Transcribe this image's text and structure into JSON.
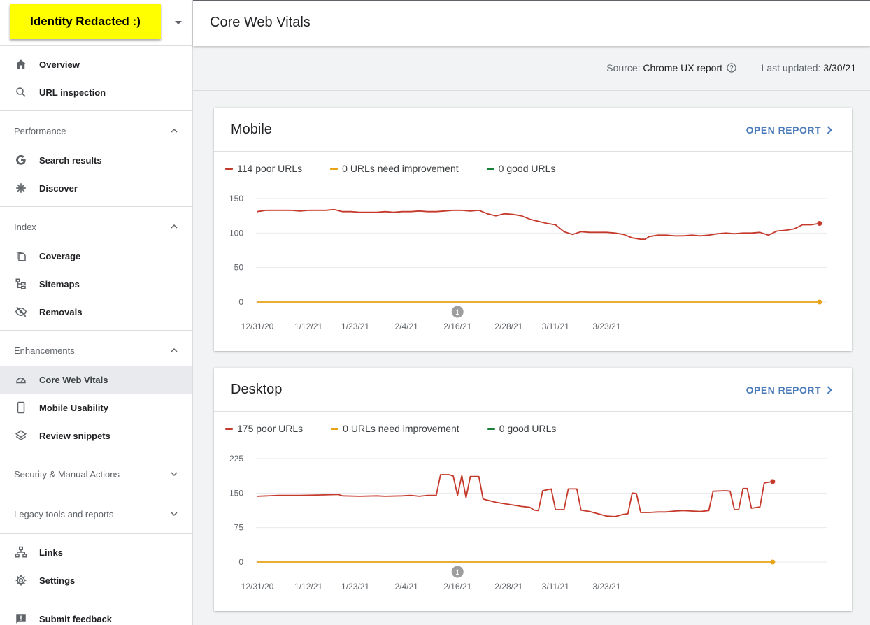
{
  "property": {
    "name": "Identity Redacted :)"
  },
  "nav": {
    "overview": "Overview",
    "url_inspection": "URL inspection",
    "performance": {
      "heading": "Performance",
      "search_results": "Search results",
      "discover": "Discover"
    },
    "index": {
      "heading": "Index",
      "coverage": "Coverage",
      "sitemaps": "Sitemaps",
      "removals": "Removals"
    },
    "enhancements": {
      "heading": "Enhancements",
      "core_web_vitals": "Core Web Vitals",
      "mobile_usability": "Mobile Usability",
      "review_snippets": "Review snippets"
    },
    "security": "Security & Manual Actions",
    "legacy": "Legacy tools and reports",
    "links": "Links",
    "settings": "Settings",
    "submit_feedback": "Submit feedback"
  },
  "header": {
    "title": "Core Web Vitals"
  },
  "source_bar": {
    "source_label": "Source:",
    "source_value": "Chrome UX report",
    "updated_label": "Last updated:",
    "updated_value": "3/30/21"
  },
  "colors": {
    "poor": "#c5392b",
    "needs_improvement": "#e8a317",
    "good": "#188038",
    "link": "#4a7ab8"
  },
  "cards": {
    "mobile": {
      "title": "Mobile",
      "open_report": "OPEN REPORT",
      "legend": {
        "poor": "114 poor URLs",
        "needs_improvement": "0 URLs need improvement",
        "good": "0 good URLs"
      },
      "annotation": "1"
    },
    "desktop": {
      "title": "Desktop",
      "open_report": "OPEN REPORT",
      "legend": {
        "poor": "175 poor URLs",
        "needs_improvement": "0 URLs need improvement",
        "good": "0 good URLs"
      },
      "annotation": "1"
    }
  },
  "chart_data": [
    {
      "type": "line",
      "name": "Mobile",
      "x_tick_labels": [
        "12/31/20",
        "1/12/21",
        "1/23/21",
        "2/4/21",
        "2/16/21",
        "2/28/21",
        "3/11/21",
        "3/23/21"
      ],
      "x_tick_days": [
        0,
        12,
        23,
        35,
        47,
        59,
        70,
        82
      ],
      "ylim": [
        0,
        150
      ],
      "y_ticks": [
        0,
        50,
        100,
        150
      ],
      "annotation_day": 47,
      "series": [
        {
          "name": "114 poor URLs",
          "color": "#c5392b",
          "points": [
            [
              0,
              131
            ],
            [
              2,
              133
            ],
            [
              4,
              133
            ],
            [
              6,
              133
            ],
            [
              8,
              133
            ],
            [
              10,
              132
            ],
            [
              12,
              133
            ],
            [
              14,
              133
            ],
            [
              16,
              133
            ],
            [
              18,
              134
            ],
            [
              20,
              131
            ],
            [
              22,
              131
            ],
            [
              24,
              130
            ],
            [
              26,
              130
            ],
            [
              28,
              130
            ],
            [
              30,
              131
            ],
            [
              32,
              130
            ],
            [
              34,
              131
            ],
            [
              36,
              131
            ],
            [
              38,
              132
            ],
            [
              40,
              131
            ],
            [
              42,
              131
            ],
            [
              44,
              132
            ],
            [
              46,
              133
            ],
            [
              48,
              133
            ],
            [
              50,
              132
            ],
            [
              52,
              133
            ],
            [
              54,
              128
            ],
            [
              56,
              125
            ],
            [
              58,
              128
            ],
            [
              60,
              127
            ],
            [
              62,
              125
            ],
            [
              64,
              120
            ],
            [
              66,
              117
            ],
            [
              68,
              114
            ],
            [
              70,
              112
            ],
            [
              72,
              102
            ],
            [
              74,
              98
            ],
            [
              76,
              102
            ],
            [
              78,
              101
            ],
            [
              80,
              101
            ],
            [
              82,
              101
            ],
            [
              84,
              100
            ],
            [
              86,
              98
            ],
            [
              88,
              93
            ],
            [
              90,
              91
            ],
            [
              91,
              91
            ],
            [
              92,
              95
            ],
            [
              94,
              97
            ],
            [
              96,
              97
            ],
            [
              98,
              96
            ],
            [
              100,
              96
            ],
            [
              102,
              97
            ],
            [
              104,
              96
            ],
            [
              106,
              97
            ],
            [
              108,
              99
            ],
            [
              110,
              100
            ],
            [
              112,
              99
            ],
            [
              114,
              100
            ],
            [
              116,
              100
            ],
            [
              118,
              101
            ],
            [
              120,
              97
            ],
            [
              122,
              103
            ],
            [
              124,
              104
            ],
            [
              126,
              106
            ],
            [
              128,
              112
            ],
            [
              130,
              112
            ],
            [
              132,
              114
            ]
          ]
        },
        {
          "name": "0 URLs need improvement",
          "color": "#e8a317",
          "points": [
            [
              0,
              0
            ],
            [
              132,
              0
            ]
          ]
        },
        {
          "name": "0 good URLs",
          "color": "#188038",
          "points": []
        }
      ]
    },
    {
      "type": "line",
      "name": "Desktop",
      "x_tick_labels": [
        "12/31/20",
        "1/12/21",
        "1/23/21",
        "2/4/21",
        "2/16/21",
        "2/28/21",
        "3/11/21",
        "3/23/21"
      ],
      "x_tick_days": [
        0,
        12,
        23,
        35,
        47,
        59,
        70,
        82
      ],
      "ylim": [
        0,
        225
      ],
      "y_ticks": [
        0,
        75,
        150,
        225
      ],
      "annotation_day": 47,
      "series": [
        {
          "name": "175 poor URLs",
          "color": "#c5392b",
          "points": [
            [
              0,
              143
            ],
            [
              5,
              145
            ],
            [
              10,
              145
            ],
            [
              15,
              146
            ],
            [
              19,
              147
            ],
            [
              20,
              144
            ],
            [
              24,
              143
            ],
            [
              28,
              144
            ],
            [
              30,
              143
            ],
            [
              34,
              144
            ],
            [
              36,
              145
            ],
            [
              38,
              143
            ],
            [
              40,
              145
            ],
            [
              42,
              145
            ],
            [
              43,
              190
            ],
            [
              45,
              190
            ],
            [
              46,
              187
            ],
            [
              47,
              145
            ],
            [
              48,
              188
            ],
            [
              49,
              140
            ],
            [
              50,
              186
            ],
            [
              52,
              186
            ],
            [
              53,
              137
            ],
            [
              56,
              130
            ],
            [
              58,
              127
            ],
            [
              60,
              124
            ],
            [
              62,
              121
            ],
            [
              64,
              119
            ],
            [
              65,
              113
            ],
            [
              66,
              112
            ],
            [
              67,
              155
            ],
            [
              69,
              159
            ],
            [
              70,
              114
            ],
            [
              72,
              114
            ],
            [
              73,
              159
            ],
            [
              75,
              159
            ],
            [
              76,
              113
            ],
            [
              78,
              110
            ],
            [
              80,
              105
            ],
            [
              82,
              100
            ],
            [
              84,
              99
            ],
            [
              86,
              104
            ],
            [
              87,
              105
            ],
            [
              88,
              150
            ],
            [
              89,
              149
            ],
            [
              90,
              108
            ],
            [
              92,
              108
            ],
            [
              94,
              109
            ],
            [
              96,
              109
            ],
            [
              98,
              111
            ],
            [
              100,
              112
            ],
            [
              102,
              111
            ],
            [
              104,
              110
            ],
            [
              106,
              112
            ],
            [
              107,
              154
            ],
            [
              110,
              155
            ],
            [
              111,
              154
            ],
            [
              112,
              114
            ],
            [
              113,
              114
            ],
            [
              114,
              160
            ],
            [
              115,
              160
            ],
            [
              116,
              117
            ],
            [
              118,
              120
            ],
            [
              119,
              172
            ],
            [
              121,
              175
            ]
          ]
        },
        {
          "name": "0 URLs need improvement",
          "color": "#e8a317",
          "points": [
            [
              0,
              0
            ],
            [
              121,
              0
            ]
          ]
        },
        {
          "name": "0 good URLs",
          "color": "#188038",
          "points": []
        }
      ]
    }
  ]
}
